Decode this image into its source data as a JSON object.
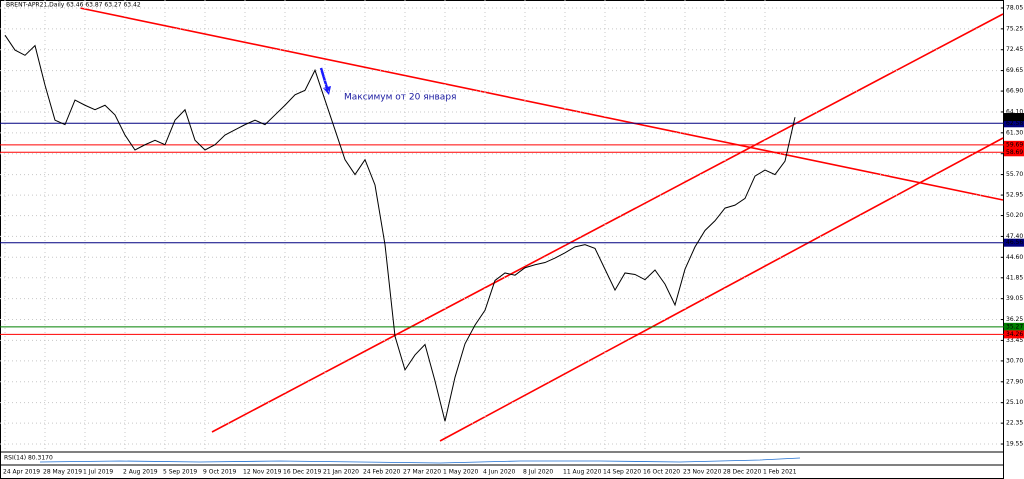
{
  "chart_data": {
    "type": "line",
    "title": "BRENT-APR21,Daily 63.46 63.87 63.27 63.42",
    "annotation": "Максимум от 20 января",
    "indicator_label": "RSI(14) 80.3170",
    "categories": [
      "24 Apr 2019",
      null,
      null,
      null,
      "28 May 2019",
      null,
      null,
      null,
      "1 Jul 2019",
      null,
      null,
      null,
      "2 Aug 2019",
      null,
      null,
      null,
      "5 Sep 2019",
      null,
      null,
      null,
      "9 Oct 2019",
      null,
      null,
      null,
      "12 Nov 2019",
      null,
      null,
      null,
      "16 Dec 2019",
      null,
      null,
      null,
      "21 Jan 2020",
      null,
      null,
      null,
      "24 Feb 2020",
      null,
      null,
      null,
      "27 Mar 2020",
      null,
      null,
      null,
      "1 May 2020",
      null,
      null,
      null,
      "4 Jun 2020",
      null,
      null,
      null,
      "8 Jul 2020",
      null,
      null,
      null,
      "11 Aug 2020",
      null,
      null,
      null,
      "14 Sep 2020",
      null,
      null,
      null,
      "16 Oct 2020",
      null,
      null,
      null,
      "23 Nov 2020",
      null,
      null,
      null,
      "28 Dec 2020",
      null,
      null,
      null,
      "1 Feb 2021",
      null,
      null,
      null
    ],
    "series": [
      {
        "name": "BRENT-APR21",
        "color": "#000000",
        "values": [
          74.4,
          72.4,
          71.7,
          73.0,
          67.7,
          63.0,
          62.4,
          65.7,
          65.0,
          64.4,
          65.0,
          63.7,
          61.0,
          59.0,
          59.7,
          60.3,
          59.7,
          63.0,
          64.4,
          60.3,
          59.0,
          59.7,
          61.0,
          61.7,
          62.4,
          63.0,
          62.4,
          63.7,
          65.0,
          66.4,
          67.0,
          69.7,
          65.7,
          61.7,
          57.7,
          55.7,
          57.7,
          54.3,
          46.3,
          34.0,
          29.5,
          31.5,
          32.9,
          28.0,
          22.6,
          28.5,
          33.0,
          35.5,
          37.5,
          41.5,
          42.5,
          42.2,
          43.2,
          43.6,
          43.9,
          44.5,
          45.2,
          46.0,
          46.3,
          45.8,
          43.0,
          40.2,
          42.5,
          42.3,
          41.6,
          42.9,
          41.0,
          38.2,
          43.0,
          46.0,
          48.2,
          49.5,
          51.2,
          51.6,
          52.5,
          55.5,
          56.3,
          55.7,
          57.5,
          63.4
        ]
      }
    ],
    "levels": [
      {
        "value": 62.58,
        "color": "#000080"
      },
      {
        "value": 59.69,
        "color": "#ff0000"
      },
      {
        "value": 58.69,
        "color": "#ff0000"
      },
      {
        "value": 46.56,
        "color": "#000080"
      },
      {
        "value": 35.27,
        "color": "#008000"
      },
      {
        "value": 34.26,
        "color": "#ff0000"
      }
    ],
    "current_price": 63.42,
    "ylim": [
      18.48,
      79.12
    ],
    "yticks": [
      78.05,
      75.25,
      72.45,
      69.65,
      {
        "value": 66.9,
        "label": "66.90"
      },
      {
        "value": 64.1,
        "label": "64.10"
      },
      {
        "value": 61.3,
        "label": "61.30"
      },
      {
        "value": 58.5,
        "label": "58.50"
      },
      {
        "value": 55.7,
        "label": "55.70"
      },
      52.95,
      {
        "value": 50.2,
        "label": "50.20"
      },
      {
        "value": 47.4,
        "label": "47.40"
      },
      {
        "value": 44.6,
        "label": "44.60"
      },
      41.85,
      39.05,
      36.25,
      33.45,
      {
        "value": 30.7,
        "label": "30.70"
      },
      {
        "value": 27.9,
        "label": "27.90"
      },
      {
        "value": 25.1,
        "label": "25.10"
      },
      22.35,
      19.55
    ],
    "grid": true
  }
}
